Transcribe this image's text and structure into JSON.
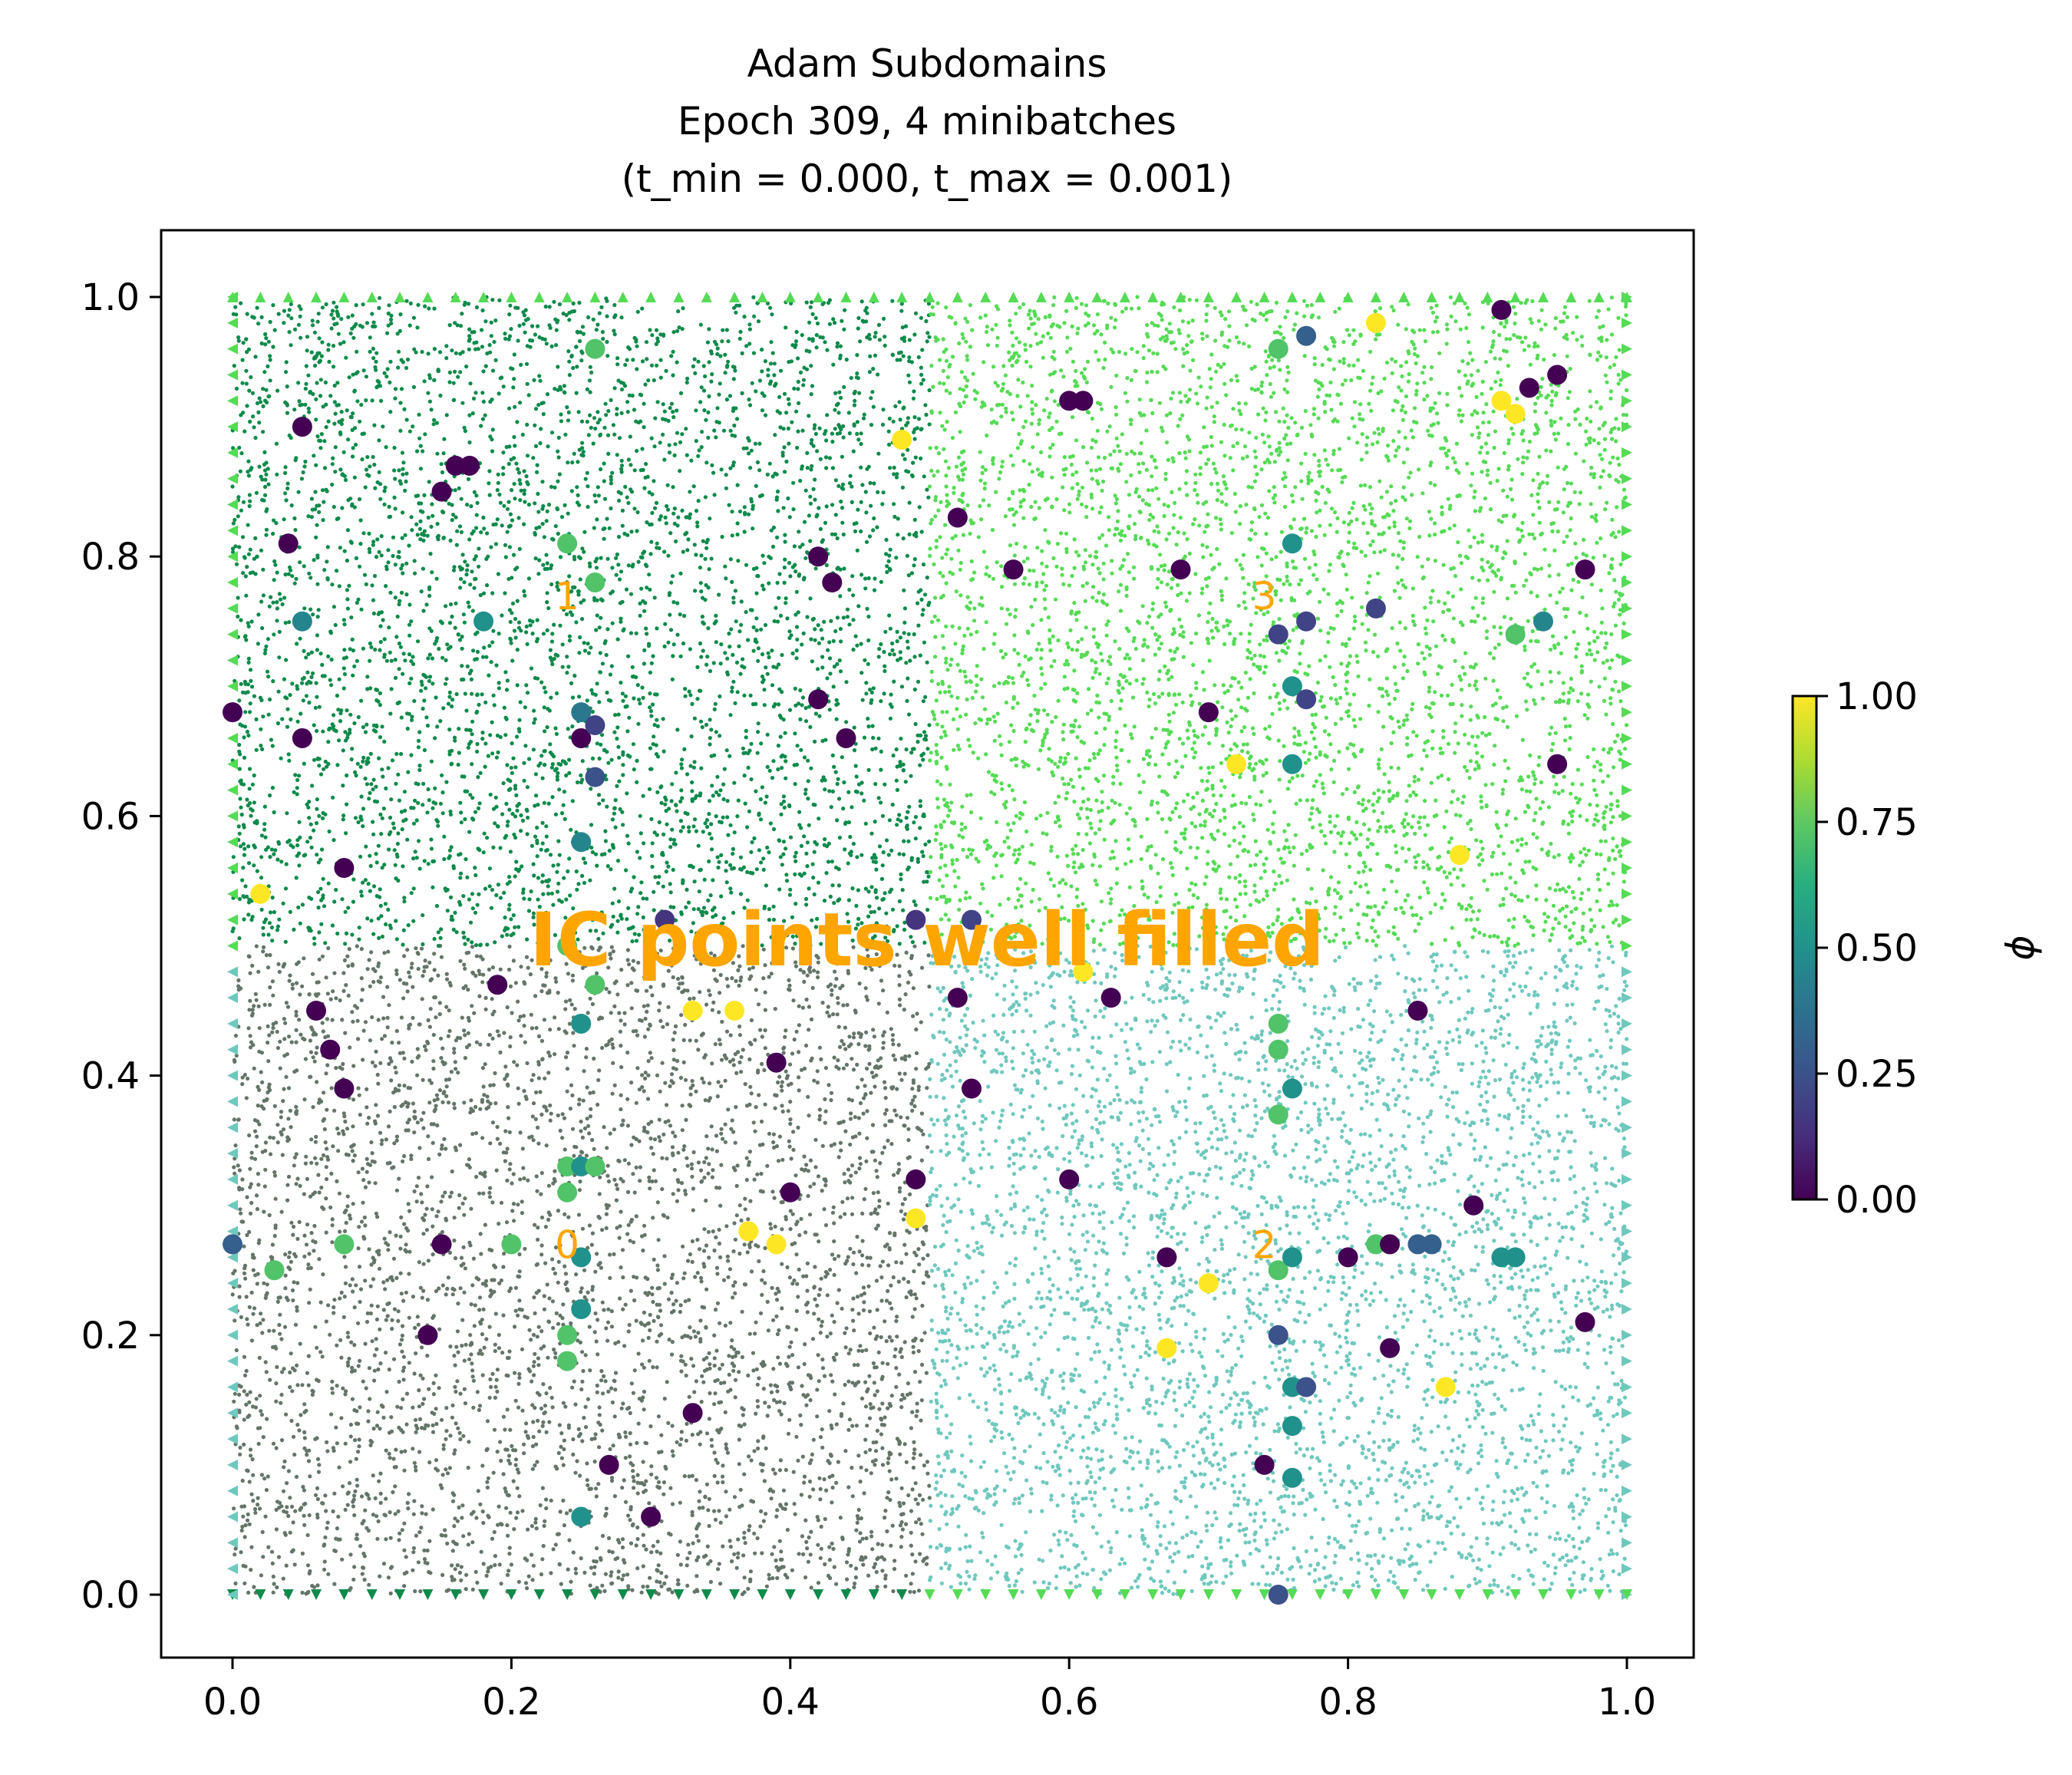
{
  "chart_data": {
    "type": "scatter",
    "title_lines": [
      "Adam Subdomains",
      "Epoch 309, 4 minibatches",
      "(t_min = 0.000, t_max = 0.001)"
    ],
    "xlabel": "",
    "ylabel": "",
    "xlim": [
      -0.05,
      1.05
    ],
    "ylim": [
      -0.05,
      1.05
    ],
    "x_ticks": [
      "0.0",
      "0.2",
      "0.4",
      "0.6",
      "0.8",
      "1.0"
    ],
    "y_ticks": [
      "0.0",
      "0.2",
      "0.4",
      "0.6",
      "0.8",
      "1.0"
    ],
    "grid": false,
    "annotation": "IC points well filled",
    "colorbar": {
      "label": "ϕ",
      "colormap": "viridis",
      "range": [
        0.0,
        1.0
      ],
      "ticks": [
        "0.00",
        "0.25",
        "0.50",
        "0.75",
        "1.00"
      ]
    },
    "subdomains": [
      {
        "label": "0",
        "x_range": [
          0.0,
          0.5
        ],
        "y_range": [
          0.0,
          0.5
        ],
        "color": "#647568",
        "label_pos": [
          0.24,
          0.27
        ]
      },
      {
        "label": "1",
        "x_range": [
          0.0,
          0.5
        ],
        "y_range": [
          0.5,
          1.0
        ],
        "color": "#0e8a4a",
        "label_pos": [
          0.24,
          0.77
        ]
      },
      {
        "label": "2",
        "x_range": [
          0.5,
          1.0
        ],
        "y_range": [
          0.0,
          0.5
        ],
        "color": "#6fc8bd",
        "label_pos": [
          0.74,
          0.27
        ]
      },
      {
        "label": "3",
        "x_range": [
          0.5,
          1.0
        ],
        "y_range": [
          0.5,
          1.0
        ],
        "color": "#55db55",
        "label_pos": [
          0.74,
          0.77
        ]
      }
    ],
    "series": [
      {
        "values": [
          [
            0.0,
            0.68,
            0.0
          ],
          [
            0.05,
            0.9,
            0.0
          ],
          [
            0.04,
            0.81,
            0.0
          ],
          [
            0.05,
            0.75,
            0.45
          ],
          [
            0.05,
            0.66,
            0.0
          ],
          [
            0.08,
            0.56,
            0.0
          ],
          [
            0.15,
            0.85,
            0.0
          ],
          [
            0.16,
            0.87,
            0.0
          ],
          [
            0.17,
            0.87,
            0.0
          ],
          [
            0.18,
            0.75,
            0.5
          ],
          [
            0.24,
            0.81,
            0.72
          ],
          [
            0.26,
            0.78,
            0.72
          ],
          [
            0.26,
            0.96,
            0.72
          ],
          [
            0.25,
            0.68,
            0.4
          ],
          [
            0.25,
            0.66,
            0.0
          ],
          [
            0.26,
            0.67,
            0.2
          ],
          [
            0.26,
            0.63,
            0.25
          ],
          [
            0.25,
            0.58,
            0.45
          ],
          [
            0.42,
            0.8,
            0.0
          ],
          [
            0.43,
            0.78,
            0.0
          ],
          [
            0.42,
            0.69,
            0.0
          ],
          [
            0.44,
            0.66,
            0.0
          ],
          [
            0.48,
            0.89,
            1.0
          ],
          [
            0.02,
            0.54,
            1.0
          ],
          [
            0.31,
            0.52,
            0.15
          ],
          [
            0.49,
            0.52,
            0.15
          ],
          [
            0.53,
            0.52,
            0.2
          ],
          [
            0.24,
            0.5,
            0.72
          ],
          [
            0.26,
            0.47,
            0.72
          ],
          [
            0.19,
            0.47,
            0.0
          ],
          [
            0.06,
            0.45,
            0.0
          ],
          [
            0.07,
            0.42,
            0.0
          ],
          [
            0.08,
            0.39,
            0.0
          ],
          [
            0.25,
            0.44,
            0.5
          ],
          [
            0.33,
            0.45,
            1.0
          ],
          [
            0.36,
            0.45,
            1.0
          ],
          [
            0.39,
            0.41,
            0.0
          ],
          [
            0.24,
            0.33,
            0.72
          ],
          [
            0.25,
            0.33,
            0.5
          ],
          [
            0.26,
            0.33,
            0.72
          ],
          [
            0.24,
            0.31,
            0.72
          ],
          [
            0.4,
            0.31,
            0.0
          ],
          [
            0.49,
            0.32,
            0.0
          ],
          [
            0.49,
            0.29,
            1.0
          ],
          [
            0.0,
            0.27,
            0.3
          ],
          [
            0.03,
            0.25,
            0.72
          ],
          [
            0.08,
            0.27,
            0.72
          ],
          [
            0.15,
            0.27,
            0.0
          ],
          [
            0.2,
            0.27,
            0.72
          ],
          [
            0.25,
            0.26,
            0.5
          ],
          [
            0.37,
            0.28,
            1.0
          ],
          [
            0.39,
            0.27,
            1.0
          ],
          [
            0.25,
            0.22,
            0.5
          ],
          [
            0.24,
            0.2,
            0.72
          ],
          [
            0.24,
            0.18,
            0.72
          ],
          [
            0.14,
            0.2,
            0.0
          ],
          [
            0.33,
            0.14,
            0.0
          ],
          [
            0.27,
            0.1,
            0.0
          ],
          [
            0.25,
            0.06,
            0.5
          ],
          [
            0.3,
            0.06,
            0.0
          ],
          [
            0.6,
            0.92,
            0.0
          ],
          [
            0.61,
            0.92,
            0.0
          ],
          [
            0.52,
            0.83,
            0.0
          ],
          [
            0.56,
            0.79,
            0.0
          ],
          [
            0.68,
            0.79,
            0.0
          ],
          [
            0.7,
            0.68,
            0.0
          ],
          [
            0.72,
            0.64,
            1.0
          ],
          [
            0.75,
            0.96,
            0.72
          ],
          [
            0.77,
            0.97,
            0.3
          ],
          [
            0.82,
            0.98,
            1.0
          ],
          [
            0.91,
            0.99,
            0.0
          ],
          [
            0.93,
            0.93,
            0.0
          ],
          [
            0.95,
            0.94,
            0.0
          ],
          [
            0.91,
            0.92,
            1.0
          ],
          [
            0.92,
            0.91,
            1.0
          ],
          [
            0.76,
            0.81,
            0.5
          ],
          [
            0.75,
            0.74,
            0.2
          ],
          [
            0.77,
            0.75,
            0.2
          ],
          [
            0.82,
            0.76,
            0.2
          ],
          [
            0.76,
            0.7,
            0.5
          ],
          [
            0.77,
            0.69,
            0.2
          ],
          [
            0.76,
            0.64,
            0.5
          ],
          [
            0.92,
            0.74,
            0.72
          ],
          [
            0.94,
            0.75,
            0.45
          ],
          [
            0.97,
            0.79,
            0.0
          ],
          [
            0.95,
            0.64,
            0.0
          ],
          [
            0.88,
            0.57,
            1.0
          ],
          [
            0.52,
            0.46,
            0.0
          ],
          [
            0.53,
            0.39,
            0.0
          ],
          [
            0.61,
            0.48,
            1.0
          ],
          [
            0.63,
            0.46,
            0.0
          ],
          [
            0.75,
            0.44,
            0.72
          ],
          [
            0.75,
            0.42,
            0.72
          ],
          [
            0.76,
            0.39,
            0.5
          ],
          [
            0.75,
            0.37,
            0.72
          ],
          [
            0.85,
            0.45,
            0.0
          ],
          [
            0.6,
            0.32,
            0.0
          ],
          [
            0.67,
            0.26,
            0.0
          ],
          [
            0.7,
            0.24,
            1.0
          ],
          [
            0.75,
            0.25,
            0.72
          ],
          [
            0.76,
            0.26,
            0.5
          ],
          [
            0.8,
            0.26,
            0.0
          ],
          [
            0.82,
            0.27,
            0.72
          ],
          [
            0.83,
            0.27,
            0.0
          ],
          [
            0.85,
            0.27,
            0.3
          ],
          [
            0.86,
            0.27,
            0.3
          ],
          [
            0.89,
            0.3,
            0.0
          ],
          [
            0.91,
            0.26,
            0.5
          ],
          [
            0.92,
            0.26,
            0.5
          ],
          [
            0.67,
            0.19,
            1.0
          ],
          [
            0.75,
            0.2,
            0.25
          ],
          [
            0.83,
            0.19,
            0.0
          ],
          [
            0.76,
            0.16,
            0.5
          ],
          [
            0.77,
            0.16,
            0.25
          ],
          [
            0.76,
            0.13,
            0.5
          ],
          [
            0.74,
            0.1,
            0.0
          ],
          [
            0.76,
            0.09,
            0.5
          ],
          [
            0.87,
            0.16,
            1.0
          ],
          [
            0.97,
            0.21,
            0.0
          ],
          [
            0.75,
            0.0,
            0.25
          ]
        ]
      }
    ]
  }
}
